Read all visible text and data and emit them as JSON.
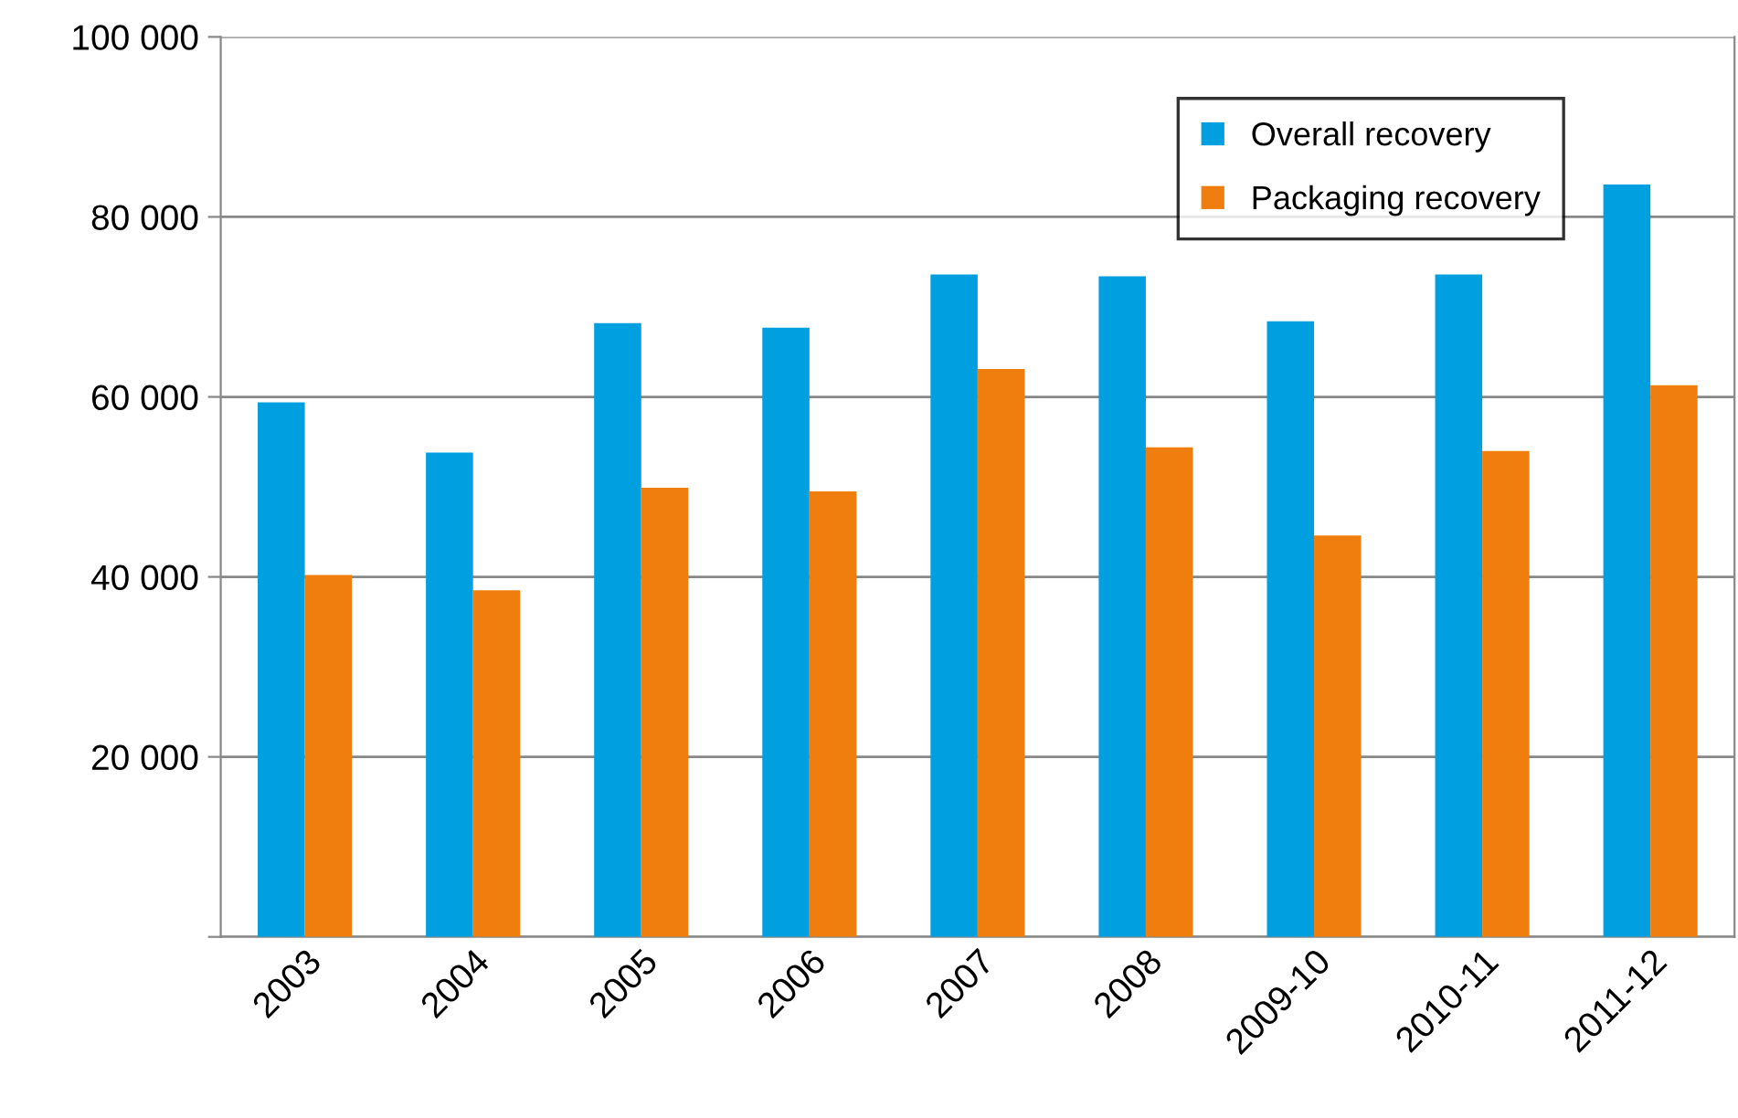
{
  "chart_data": {
    "type": "bar",
    "categories": [
      "2003",
      "2004",
      "2005",
      "2006",
      "2007",
      "2008",
      "2009-10",
      "2010-11",
      "2011-12"
    ],
    "series": [
      {
        "name": "Overall recovery",
        "color": "#009fdf",
        "values": [
          59400,
          53800,
          68200,
          67700,
          73600,
          73400,
          68400,
          73600,
          83600
        ]
      },
      {
        "name": "Packaging recovery",
        "color": "#f07e0e",
        "values": [
          40200,
          38500,
          49900,
          49500,
          63100,
          54400,
          44600,
          54000,
          61300
        ]
      }
    ],
    "ylim": [
      0,
      100000
    ],
    "yticks": [
      {
        "value": 0,
        "label": null
      },
      {
        "value": 20000,
        "label": "20 000"
      },
      {
        "value": 40000,
        "label": "40 000"
      },
      {
        "value": 60000,
        "label": "60 000"
      },
      {
        "value": 80000,
        "label": "80 000"
      },
      {
        "value": 100000,
        "label": "100 000"
      }
    ],
    "grid": "y",
    "legend": "top right"
  }
}
